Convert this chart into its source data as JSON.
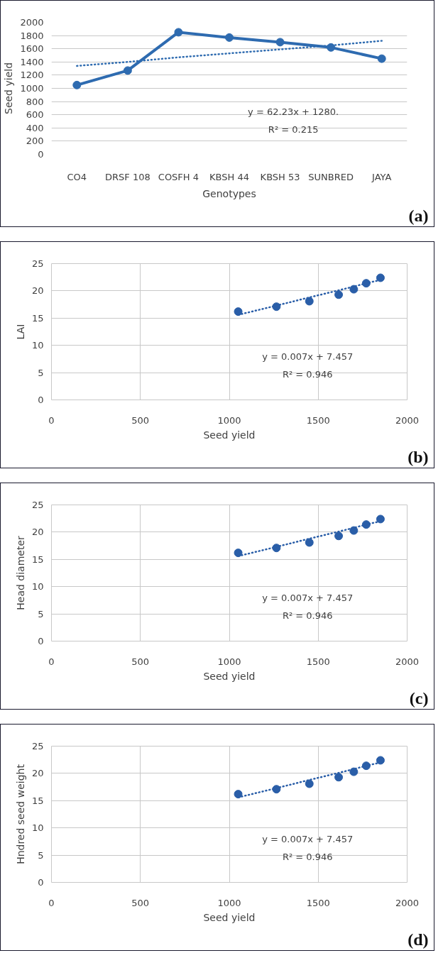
{
  "chart_data": [
    {
      "type": "line",
      "categories": [
        "CO4",
        "DRSF 108",
        "COSFH 4",
        "KBSH 44",
        "KBSH 53",
        "SUNBRED",
        "JAYA"
      ],
      "xlabel": "Genotypes",
      "ylabel": "Seed yield",
      "ylim": [
        0,
        2000
      ],
      "yticks": [
        0,
        200,
        400,
        600,
        800,
        1000,
        1200,
        1400,
        1600,
        1800,
        2000
      ],
      "grid": "y",
      "marker": "circle",
      "series": [
        {
          "color": "#2e6bb0",
          "values": [
            1050,
            1270,
            1850,
            1770,
            1700,
            1620,
            1450
          ]
        },
        {
          "type": "line",
          "color": "#2e6bb0",
          "line_style": "dotted",
          "marker": "none",
          "values": [
            1340,
            1400,
            1470,
            1530,
            1590,
            1650,
            1720
          ]
        }
      ],
      "annotations": [
        "y = 62.23x + 1280.",
        "R² = 0.215",
        "(a)"
      ]
    },
    {
      "type": "scatter",
      "x": [
        1050,
        1265,
        1450,
        1615,
        1700,
        1770,
        1850
      ],
      "xlabel": "Seed yield",
      "ylabel": "LAI",
      "xlim": [
        0,
        2000
      ],
      "xticks": [
        0,
        500,
        1000,
        1500,
        2000
      ],
      "ylim": [
        0,
        25
      ],
      "yticks": [
        0,
        5,
        10,
        15,
        20,
        25
      ],
      "grid": true,
      "marker": "circle",
      "series": [
        {
          "color": "#2a5ea8",
          "values": [
            16.2,
            17.1,
            18.1,
            19.3,
            20.3,
            21.4,
            22.4
          ]
        },
        {
          "type": "line",
          "color": "#2a5ea8",
          "line_style": "dotted",
          "marker": "none",
          "values": [
            15.6,
            17.3,
            18.8,
            20.1,
            20.8,
            21.4,
            22.0
          ]
        }
      ],
      "annotations": [
        "y = 0.007x + 7.457",
        "R² = 0.946",
        "(b)"
      ]
    },
    {
      "type": "scatter",
      "x": [
        1050,
        1265,
        1450,
        1615,
        1700,
        1770,
        1850
      ],
      "xlabel": "Seed yield",
      "ylabel": "Head diameter",
      "xlim": [
        0,
        2000
      ],
      "xticks": [
        0,
        500,
        1000,
        1500,
        2000
      ],
      "ylim": [
        0,
        25
      ],
      "yticks": [
        0,
        5,
        10,
        15,
        20,
        25
      ],
      "grid": true,
      "marker": "circle",
      "series": [
        {
          "color": "#2a5ea8",
          "values": [
            16.2,
            17.1,
            18.1,
            19.3,
            20.3,
            21.4,
            22.4
          ]
        },
        {
          "type": "line",
          "color": "#2a5ea8",
          "line_style": "dotted",
          "marker": "none",
          "values": [
            15.6,
            17.3,
            18.8,
            20.1,
            20.8,
            21.4,
            22.0
          ]
        }
      ],
      "annotations": [
        "y = 0.007x + 7.457",
        "R² = 0.946",
        "(c)"
      ]
    },
    {
      "type": "scatter",
      "x": [
        1050,
        1265,
        1450,
        1615,
        1700,
        1770,
        1850
      ],
      "xlabel": "Seed yield",
      "ylabel": "Hndred seed weight",
      "xlim": [
        0,
        2000
      ],
      "xticks": [
        0,
        500,
        1000,
        1500,
        2000
      ],
      "ylim": [
        0,
        25
      ],
      "yticks": [
        0,
        5,
        10,
        15,
        20,
        25
      ],
      "grid": true,
      "marker": "circle",
      "series": [
        {
          "color": "#2a5ea8",
          "values": [
            16.2,
            17.1,
            18.1,
            19.3,
            20.3,
            21.4,
            22.4
          ]
        },
        {
          "type": "line",
          "color": "#2a5ea8",
          "line_style": "dotted",
          "marker": "none",
          "values": [
            15.6,
            17.3,
            18.8,
            20.1,
            20.8,
            21.4,
            22.0
          ]
        }
      ],
      "annotations": [
        "y = 0.007x + 7.457",
        "R² = 0.946",
        "(d)"
      ]
    }
  ]
}
